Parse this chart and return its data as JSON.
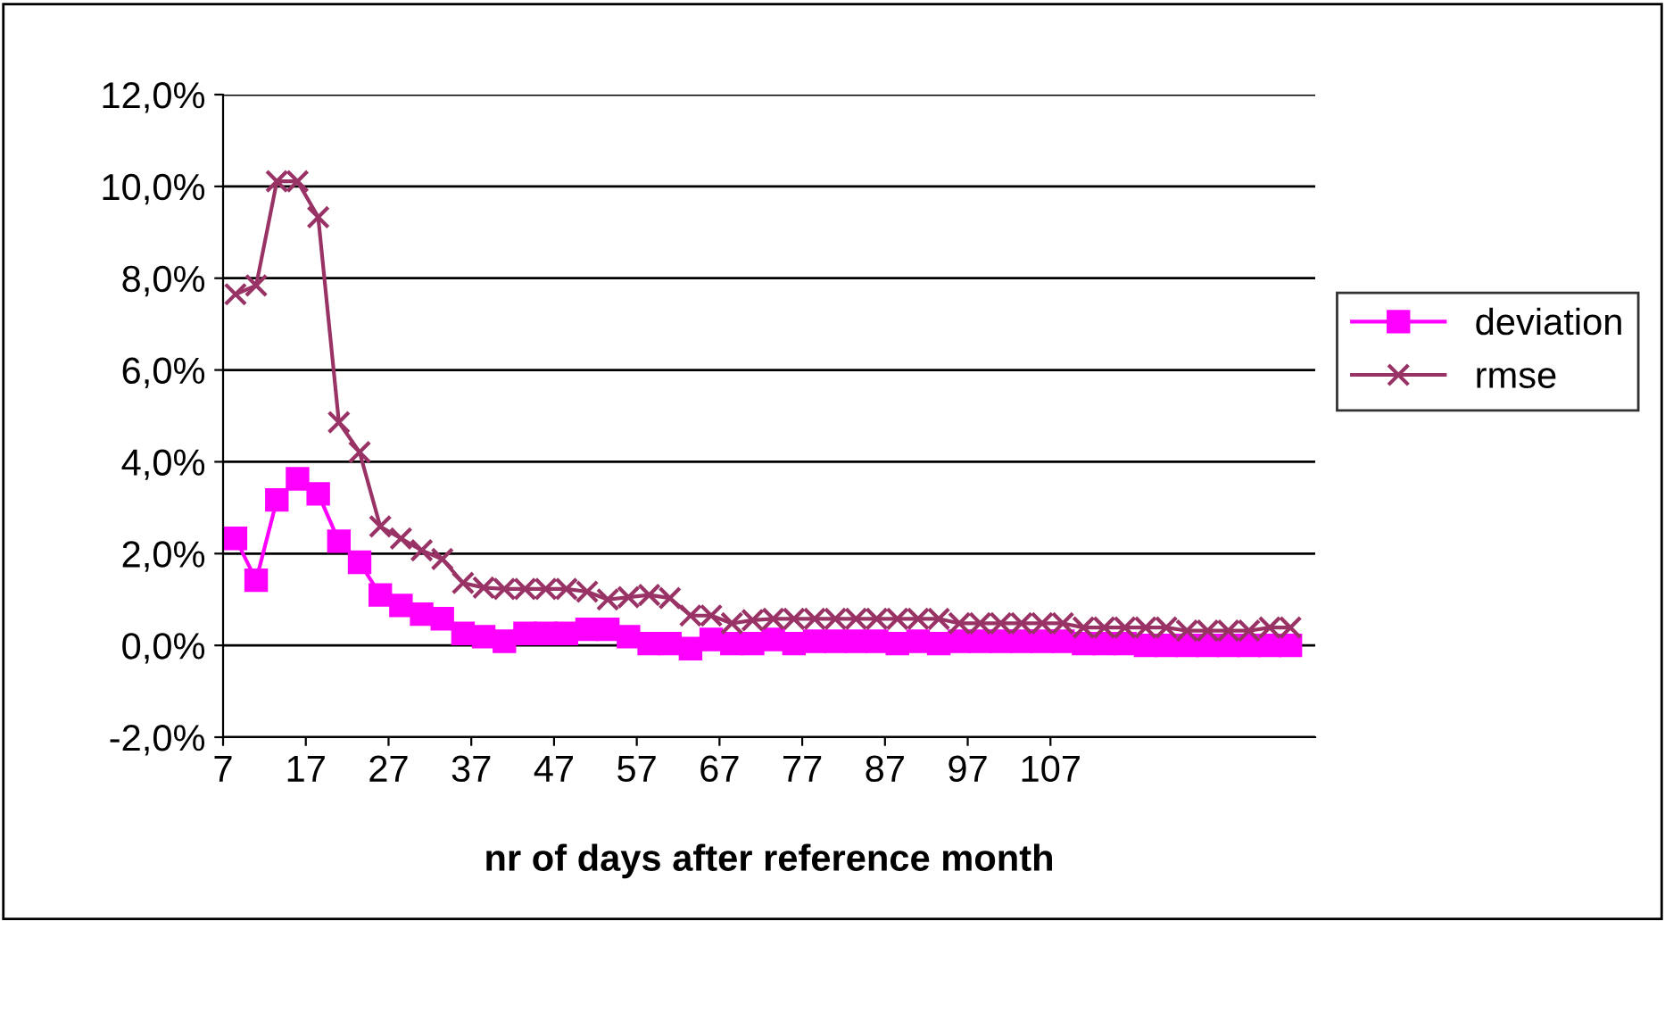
{
  "chart_data": {
    "type": "line",
    "xlabel": "nr of days after reference month",
    "x": [
      8.5,
      11,
      13.5,
      16,
      18.5,
      21,
      23.5,
      26,
      28.5,
      31,
      33.5,
      36,
      38.5,
      41,
      43.5,
      46,
      48.5,
      51,
      53.5,
      56,
      58.5,
      61,
      63.5,
      66,
      68.5,
      71,
      73.5,
      76,
      78.5,
      81,
      83.5,
      86,
      88.5,
      91,
      93.5,
      96,
      98.5,
      101,
      103.5,
      106,
      108.5,
      111,
      113.5,
      116,
      118.5,
      121,
      123.5,
      126,
      128.5,
      131,
      133.5,
      136
    ],
    "series": [
      {
        "name": "deviation",
        "color": "#ff00ff",
        "marker": "square",
        "values": [
          2.33,
          1.42,
          3.17,
          3.63,
          3.3,
          2.27,
          1.81,
          1.1,
          0.87,
          0.68,
          0.58,
          0.26,
          0.19,
          0.09,
          0.26,
          0.26,
          0.26,
          0.35,
          0.35,
          0.19,
          0.04,
          0.04,
          -0.07,
          0.13,
          0.04,
          0.04,
          0.13,
          0.04,
          0.09,
          0.09,
          0.09,
          0.09,
          0.04,
          0.09,
          0.04,
          0.09,
          0.09,
          0.09,
          0.09,
          0.09,
          0.09,
          0.04,
          0.04,
          0.04,
          0.0,
          0.0,
          0.0,
          0.0,
          0.0,
          0.0,
          0.0,
          0.0
        ]
      },
      {
        "name": "rmse",
        "color": "#993366",
        "marker": "cross",
        "values": [
          7.65,
          7.84,
          10.11,
          10.11,
          9.33,
          4.86,
          4.21,
          2.59,
          2.33,
          2.07,
          1.88,
          1.36,
          1.26,
          1.23,
          1.23,
          1.23,
          1.23,
          1.17,
          1.0,
          1.05,
          1.1,
          1.03,
          0.65,
          0.65,
          0.48,
          0.55,
          0.58,
          0.58,
          0.58,
          0.58,
          0.58,
          0.58,
          0.58,
          0.58,
          0.58,
          0.48,
          0.48,
          0.48,
          0.48,
          0.48,
          0.48,
          0.39,
          0.39,
          0.39,
          0.39,
          0.39,
          0.32,
          0.32,
          0.32,
          0.32,
          0.39,
          0.39
        ]
      }
    ],
    "xlim": [
      7,
      139
    ],
    "xticks": [
      7,
      17,
      27,
      37,
      47,
      57,
      67,
      77,
      87,
      97,
      107
    ],
    "ylim": [
      -2,
      12
    ],
    "yticks": [
      {
        "value": -2,
        "label": "-2,0%"
      },
      {
        "value": 0,
        "label": "0,0%"
      },
      {
        "value": 2,
        "label": "2,0%"
      },
      {
        "value": 4,
        "label": "4,0%"
      },
      {
        "value": 6,
        "label": "6,0%"
      },
      {
        "value": 8,
        "label": "8,0%"
      },
      {
        "value": 10,
        "label": "10,0%"
      },
      {
        "value": 12,
        "label": "12,0%"
      }
    ],
    "grid": "y",
    "legend": "right"
  }
}
